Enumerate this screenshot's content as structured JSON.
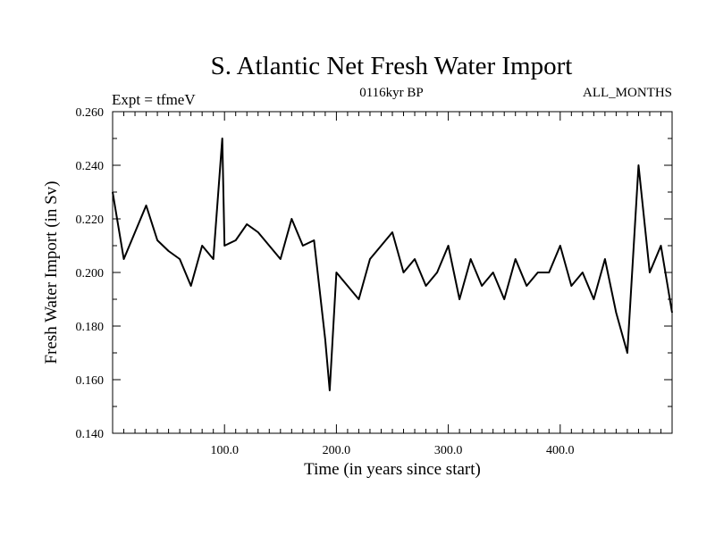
{
  "chart_data": {
    "type": "line",
    "title": "S. Atlantic Net Fresh Water Import",
    "subtitle_left": "Expt = tfmeV",
    "subtitle_center": "0116kyr BP",
    "subtitle_right": "ALL_MONTHS",
    "xlabel": "Time (in years since start)",
    "ylabel": "Fresh Water Import (in Sv)",
    "xlim": [
      0,
      500
    ],
    "ylim": [
      0.14,
      0.26
    ],
    "x_ticks": [
      100,
      200,
      300,
      400
    ],
    "x_tick_labels": [
      "100.0",
      "200.0",
      "300.0",
      "400.0"
    ],
    "y_ticks": [
      0.14,
      0.16,
      0.18,
      0.2,
      0.22,
      0.24,
      0.26
    ],
    "y_tick_labels": [
      "0.140",
      "0.160",
      "0.180",
      "0.200",
      "0.220",
      "0.240",
      "0.260"
    ],
    "grid": false,
    "line_color": "#000000",
    "series": [
      {
        "x": [
          0,
          10,
          20,
          30,
          40,
          50,
          60,
          70,
          80,
          90,
          98,
          100,
          110,
          120,
          130,
          140,
          150,
          160,
          170,
          180,
          190,
          194,
          200,
          210,
          220,
          230,
          240,
          250,
          260,
          270,
          280,
          290,
          300,
          310,
          320,
          330,
          340,
          350,
          360,
          370,
          380,
          390,
          400,
          410,
          420,
          430,
          440,
          450,
          460,
          470,
          480,
          490,
          500
        ],
        "values": [
          0.23,
          0.205,
          0.215,
          0.225,
          0.212,
          0.208,
          0.205,
          0.195,
          0.21,
          0.205,
          0.25,
          0.21,
          0.212,
          0.218,
          0.215,
          0.21,
          0.205,
          0.22,
          0.21,
          0.212,
          0.175,
          0.156,
          0.2,
          0.195,
          0.19,
          0.205,
          0.21,
          0.215,
          0.2,
          0.205,
          0.195,
          0.2,
          0.21,
          0.19,
          0.205,
          0.195,
          0.2,
          0.19,
          0.205,
          0.195,
          0.2,
          0.2,
          0.21,
          0.195,
          0.2,
          0.19,
          0.205,
          0.185,
          0.17,
          0.24,
          0.2,
          0.21,
          0.185
        ]
      }
    ]
  }
}
